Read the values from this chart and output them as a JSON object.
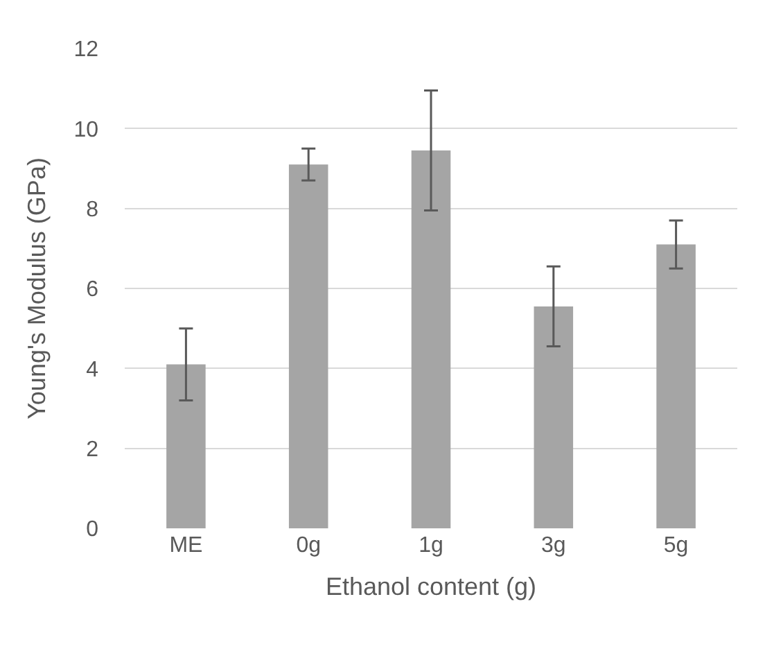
{
  "chart_data": {
    "type": "bar",
    "xlabel": "Ethanol content (g)",
    "ylabel": "Young's Modulus (GPa)",
    "categories": [
      "ME",
      "0g",
      "1g",
      "3g",
      "5g"
    ],
    "values": [
      4.1,
      9.1,
      9.45,
      5.55,
      7.1
    ],
    "errors": [
      0.9,
      0.4,
      1.5,
      1.0,
      0.6
    ],
    "color": "#a5a5a5",
    "ylim": [
      0,
      12
    ],
    "yticks": [
      0,
      2,
      4,
      6,
      8,
      10,
      12
    ],
    "grid": "y"
  }
}
